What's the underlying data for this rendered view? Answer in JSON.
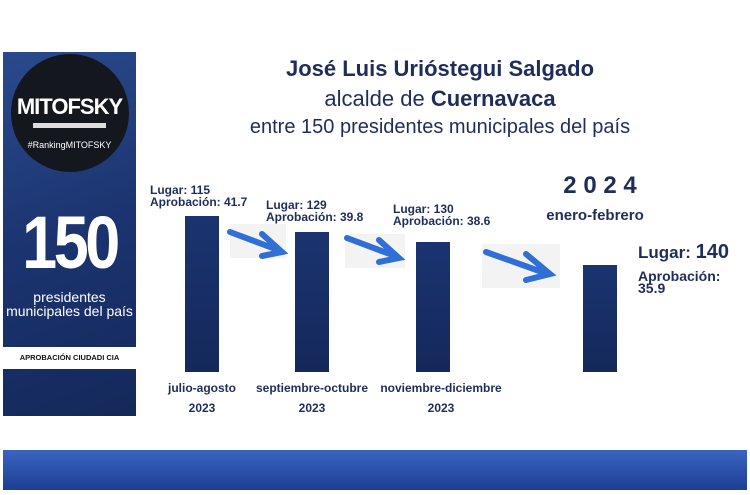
{
  "sidebar": {
    "brand": "MITOFSKY",
    "hashtag": "#RankingMITOFSKY",
    "count": "150",
    "caption": "presidentes municipales del país",
    "footer": "APROBACIÓN CIUDADI CIA"
  },
  "title": {
    "name": "José Luis Urióstegui Salgado",
    "role_prefix": "alcalde de ",
    "city": "Cuernavaca",
    "subtitle": "entre 150 presidentes municipales del país"
  },
  "highlight": {
    "year": "2 0 2 4",
    "period": "enero-febrero"
  },
  "colors": {
    "bar": "#1b3470",
    "arrow": "#2f6fd6",
    "text": "#1f2d5a",
    "band": "#2d55b0"
  },
  "chart_data": {
    "type": "bar",
    "categories": [
      "julio-agosto 2023",
      "septiembre-octubre 2023",
      "noviembre-diciembre 2023",
      "enero-febrero 2024"
    ],
    "series": [
      {
        "name": "Aprobación",
        "values": [
          41.7,
          39.8,
          38.6,
          35.9
        ]
      }
    ],
    "lugar": [
      115,
      129,
      130,
      140
    ],
    "labels": [
      {
        "lugar": "Lugar: 115",
        "aprob": "Aprobación: 41.7",
        "cat1": "julio-agosto",
        "cat2": "2023"
      },
      {
        "lugar": "Lugar: 129",
        "aprob": "Aprobación: 39.8",
        "cat1": "septiembre-octubre",
        "cat2": "2023"
      },
      {
        "lugar": "Lugar: 130",
        "aprob": "Aprobación: 38.6",
        "cat1": "noviembre-diciembre",
        "cat2": "2023"
      },
      {
        "lugar_prefix": "Lugar: ",
        "lugar_num": "140",
        "aprob1": "Aprobación:",
        "aprob2": "35.9"
      }
    ]
  }
}
